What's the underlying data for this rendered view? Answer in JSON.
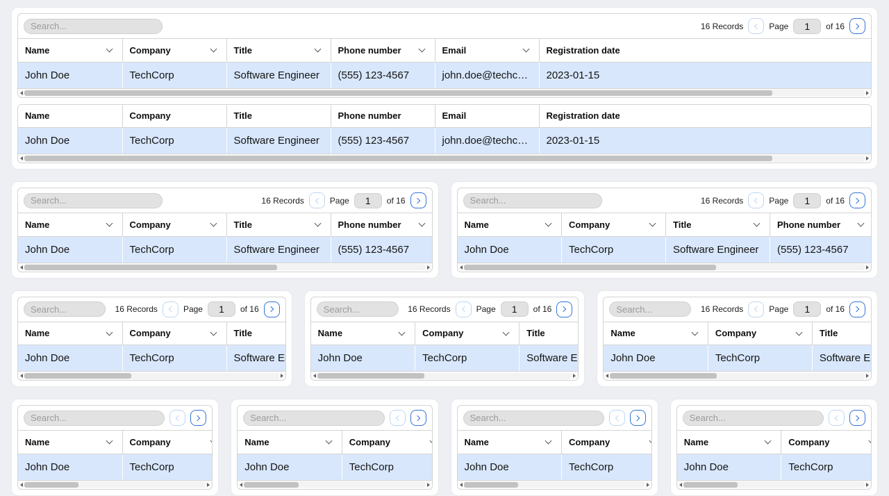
{
  "grid": {
    "columns": [
      "Name",
      "Company",
      "Title",
      "Phone number",
      "Email",
      "Registration date"
    ],
    "row": [
      "John Doe",
      "TechCorp",
      "Software Engineer",
      "(555) 123-4567",
      "john.doe@techcor…",
      "2023-01-15"
    ]
  },
  "toolbar": {
    "search_placeholder": "Search...",
    "records": "16 Records",
    "page_label": "Page",
    "page_value": "1",
    "of_label": "of 16"
  },
  "colors": {
    "row_highlight": "#d8e7fc",
    "next_button_blue": "#3273d9",
    "prev_button_blue": "#bdd7f3",
    "page_background": "#edeff2"
  }
}
